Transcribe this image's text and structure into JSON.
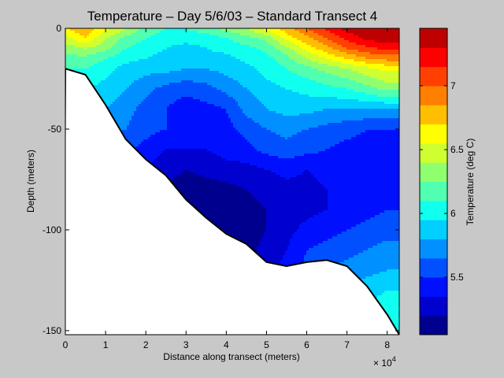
{
  "chart_data": {
    "type": "heatmap",
    "title": "Temperature – Day 5/6/03 – Standard Transect 4",
    "xlabel": "Distance along transect (meters)",
    "ylabel": "Depth (meters)",
    "x_multiplier": "× 10",
    "x_multiplier_exp": "4",
    "xlim": [
      0,
      83000
    ],
    "ylim": [
      -152,
      0
    ],
    "x_ticks": [
      0,
      10000,
      20000,
      30000,
      40000,
      50000,
      60000,
      70000,
      80000
    ],
    "x_tick_labels": [
      "0",
      "1",
      "2",
      "3",
      "4",
      "5",
      "6",
      "7",
      "8"
    ],
    "y_ticks": [
      0,
      -50,
      -100,
      -150
    ],
    "y_tick_labels": [
      "0",
      "-50",
      "-100",
      "-150"
    ],
    "colorbar": {
      "label": "Temperature (deg C)",
      "range": [
        5.05,
        7.45
      ],
      "levels": 16,
      "ticks": [
        5.5,
        6,
        6.5,
        7
      ],
      "tick_labels": [
        "5.5",
        "6",
        "6.5",
        "7"
      ],
      "colors": [
        "#00008f",
        "#0000cf",
        "#0010ff",
        "#0050ff",
        "#0090ff",
        "#00cfff",
        "#10ffef",
        "#50ffaf",
        "#8fff70",
        "#cfff30",
        "#ffff00",
        "#ffbf00",
        "#ff8000",
        "#ff4000",
        "#ff0000",
        "#bf0000"
      ]
    },
    "x": [
      0,
      5000,
      10000,
      15000,
      20000,
      25000,
      30000,
      35000,
      40000,
      45000,
      50000,
      55000,
      60000,
      65000,
      70000,
      75000,
      80000,
      83000
    ],
    "depths": [
      0,
      -5,
      -10,
      -15,
      -20,
      -30,
      -40,
      -50,
      -60,
      -70,
      -80,
      -90,
      -100,
      -110,
      -120,
      -130,
      -140,
      -150
    ],
    "bottom_depth": [
      -20,
      -23,
      -38,
      -55,
      -65,
      -73,
      -85,
      -94,
      -102,
      -107,
      -116,
      -118,
      -116,
      -115,
      -118,
      -128,
      -142,
      -152
    ],
    "temperature": [
      [
        6.7,
        6.8,
        6.6,
        6.4,
        6.2,
        6.1,
        6.1,
        6.2,
        6.3,
        6.4,
        6.6,
        6.8,
        7.0,
        7.2,
        7.35,
        7.45,
        7.45,
        7.45
      ],
      [
        6.5,
        6.7,
        6.4,
        6.2,
        6.1,
        6.0,
        6.0,
        6.0,
        6.1,
        6.2,
        6.3,
        6.6,
        6.8,
        7.0,
        7.2,
        7.35,
        7.4,
        7.4
      ],
      [
        6.3,
        6.4,
        6.3,
        6.1,
        6.0,
        5.95,
        5.9,
        5.95,
        6.0,
        6.05,
        6.15,
        6.35,
        6.6,
        6.8,
        7.0,
        7.1,
        7.2,
        7.2
      ],
      [
        6.2,
        6.2,
        6.1,
        6.0,
        5.95,
        5.9,
        5.9,
        5.9,
        5.9,
        6.0,
        6.05,
        6.2,
        6.4,
        6.55,
        6.7,
        6.85,
        6.9,
        6.9
      ],
      [
        6.1,
        6.1,
        6.0,
        5.9,
        5.85,
        5.85,
        5.8,
        5.8,
        5.85,
        5.9,
        6.0,
        6.1,
        6.2,
        6.3,
        6.4,
        6.5,
        6.6,
        6.6
      ],
      [
        6.0,
        5.95,
        5.9,
        5.8,
        5.7,
        5.6,
        5.55,
        5.6,
        5.7,
        5.8,
        5.9,
        5.95,
        6.0,
        6.05,
        6.1,
        6.2,
        6.3,
        6.3
      ],
      [
        5.9,
        5.85,
        5.8,
        5.7,
        5.6,
        5.5,
        5.4,
        5.45,
        5.5,
        5.7,
        5.8,
        5.85,
        5.85,
        5.8,
        5.8,
        5.8,
        5.8,
        5.8
      ],
      [
        5.8,
        5.75,
        5.7,
        5.65,
        5.55,
        5.5,
        5.45,
        5.4,
        5.45,
        5.55,
        5.65,
        5.7,
        5.65,
        5.6,
        5.55,
        5.5,
        5.5,
        5.5
      ],
      [
        5.7,
        5.65,
        5.6,
        5.55,
        5.45,
        5.35,
        5.35,
        5.35,
        5.4,
        5.45,
        5.55,
        5.6,
        5.55,
        5.5,
        5.45,
        5.45,
        5.45,
        5.45
      ],
      [
        5.6,
        5.55,
        5.5,
        5.45,
        5.35,
        5.25,
        5.2,
        5.25,
        5.3,
        5.3,
        5.35,
        5.4,
        5.35,
        5.4,
        5.45,
        5.45,
        5.45,
        5.45
      ],
      [
        5.5,
        5.5,
        5.45,
        5.4,
        5.3,
        5.2,
        5.12,
        5.12,
        5.15,
        5.2,
        5.25,
        5.3,
        5.3,
        5.35,
        5.4,
        5.4,
        5.45,
        5.45
      ],
      [
        5.4,
        5.4,
        5.35,
        5.3,
        5.2,
        5.12,
        5.08,
        5.08,
        5.1,
        5.15,
        5.2,
        5.25,
        5.3,
        5.35,
        5.4,
        5.45,
        5.5,
        5.5
      ],
      [
        5.3,
        5.3,
        5.25,
        5.2,
        5.15,
        5.1,
        5.08,
        5.08,
        5.1,
        5.12,
        5.2,
        5.3,
        5.4,
        5.45,
        5.5,
        5.55,
        5.6,
        5.6
      ],
      [
        5.3,
        5.3,
        5.25,
        5.2,
        5.15,
        5.12,
        5.1,
        5.1,
        5.12,
        5.15,
        5.25,
        5.35,
        5.5,
        5.55,
        5.6,
        5.65,
        5.7,
        5.7
      ],
      [
        5.3,
        5.3,
        5.25,
        5.2,
        5.15,
        5.15,
        5.15,
        5.15,
        5.15,
        5.2,
        5.3,
        5.4,
        5.55,
        5.65,
        5.7,
        5.75,
        5.8,
        5.8
      ],
      [
        5.3,
        5.3,
        5.25,
        5.2,
        5.2,
        5.2,
        5.2,
        5.2,
        5.2,
        5.25,
        5.35,
        5.45,
        5.6,
        5.7,
        5.8,
        5.9,
        5.95,
        5.95
      ],
      [
        5.3,
        5.3,
        5.3,
        5.25,
        5.25,
        5.25,
        5.25,
        5.25,
        5.25,
        5.3,
        5.4,
        5.5,
        5.65,
        5.75,
        5.85,
        5.95,
        6.05,
        6.05
      ],
      [
        5.3,
        5.3,
        5.3,
        5.3,
        5.3,
        5.3,
        5.3,
        5.3,
        5.3,
        5.35,
        5.45,
        5.55,
        5.7,
        5.8,
        5.9,
        6.0,
        6.1,
        6.1
      ]
    ]
  }
}
